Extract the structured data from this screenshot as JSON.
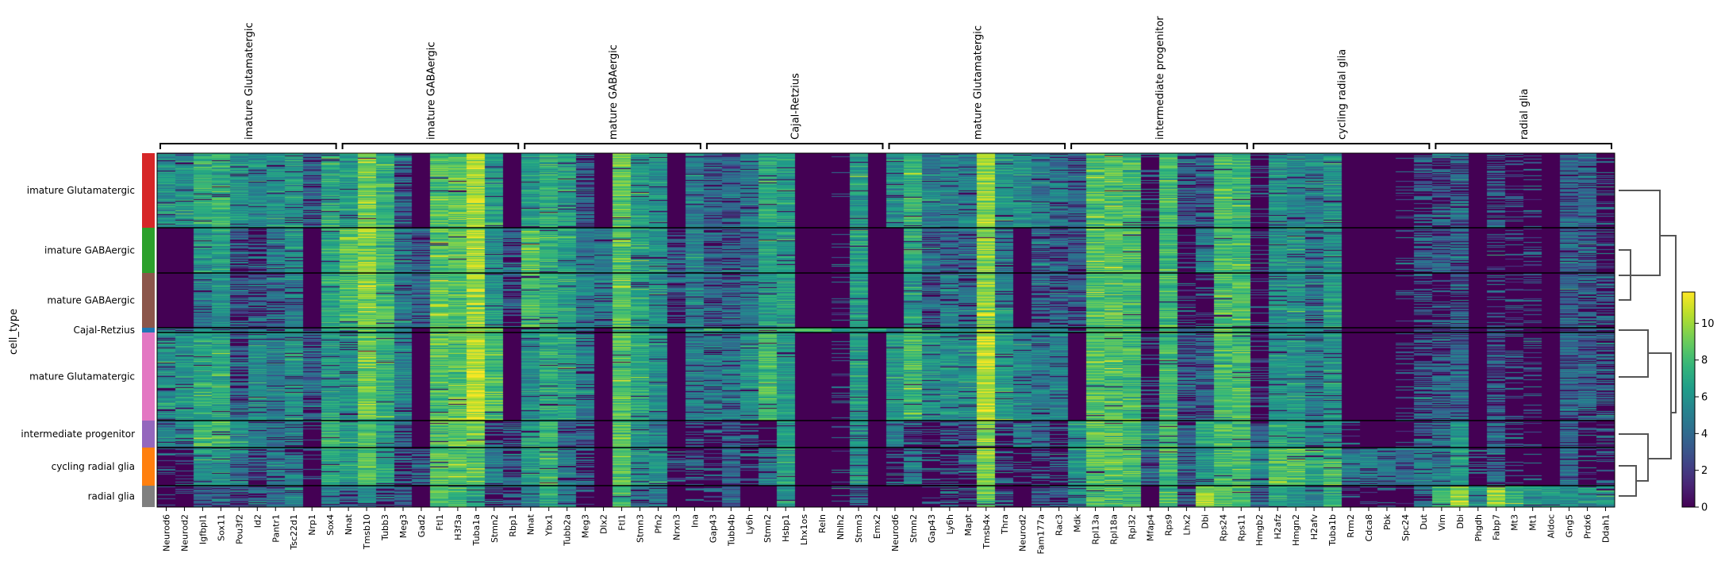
{
  "chart_data": {
    "type": "heatmap",
    "colormap": "viridis",
    "ylabel": "cell_type",
    "colorbar": {
      "range": [
        0,
        11.7
      ],
      "ticks": [
        "0",
        "2",
        "4",
        "6",
        "8",
        "10"
      ]
    },
    "cell_types": [
      "imature Glutamatergic",
      "imature GABAergic",
      "mature GABAergic",
      "Cajal-Retzius",
      "mature Glutamatergic",
      "intermediate progenitor",
      "cycling radial glia",
      "radial glia"
    ],
    "cell_type_colors": [
      "#d62728",
      "#2ca02c",
      "#8c564b",
      "#1f77b4",
      "#e377c2",
      "#9467bd",
      "#ff7f0e",
      "#7f7f7f"
    ],
    "var_groups": [
      {
        "label": "imature Glutamatergic",
        "genes": [
          "Neurod6",
          "Neurod2",
          "Igfbpl1",
          "Sox11",
          "Pou3f2",
          "Id2",
          "Pantr1",
          "Tsc22d1",
          "Nrp1",
          "Sox4"
        ]
      },
      {
        "label": "imature GABAergic",
        "genes": [
          "Nnat",
          "Tmsb10",
          "Tubb3",
          "Meg3",
          "Gad2",
          "Ftl1",
          "H3f3a",
          "Tuba1a",
          "Stmn2",
          "Rbp1"
        ]
      },
      {
        "label": "mature GABAergic",
        "genes": [
          "Nnat",
          "Ybx1",
          "Tubb2a",
          "Meg3",
          "Dlx2",
          "Ftl1",
          "Stmn3",
          "Pfn2",
          "Nrxn3",
          "Ina"
        ]
      },
      {
        "label": "Cajal-Retzius",
        "genes": [
          "Gap43",
          "Tubb4b",
          "Ly6h",
          "Stmn2",
          "Hsbp1",
          "Lhx1os",
          "Reln",
          "Nhlh2",
          "Stmn3",
          "Emx2"
        ]
      },
      {
        "label": "mature Glutamatergic",
        "genes": [
          "Neurod6",
          "Stmn2",
          "Gap43",
          "Ly6h",
          "Mapt",
          "Tmsb4x",
          "Thra",
          "Neurod2",
          "Fam177a",
          "Rac3"
        ]
      },
      {
        "label": "intermediate progenitor",
        "genes": [
          "Mdk",
          "Rpl13a",
          "Rpl18a",
          "Rpl32",
          "Mfap4",
          "Rps9",
          "Lhx2",
          "Dbi",
          "Rps24",
          "Rps11"
        ]
      },
      {
        "label": "cycling radial glia",
        "genes": [
          "Hmgb2",
          "H2afz",
          "Hmgn2",
          "H2afv",
          "Tuba1b",
          "Rrm2",
          "Cdca8",
          "Pbk",
          "Spc24",
          "Dut"
        ]
      },
      {
        "label": "radial glia",
        "genes": [
          "Vim",
          "Dbi",
          "Phgdh",
          "Fabp7",
          "Mt3",
          "Mt1",
          "Aldoc",
          "Gng5",
          "Prdx6",
          "Ddah1"
        ]
      }
    ],
    "approx_mean_expression": [
      [
        6,
        6,
        7.5,
        7.5,
        6,
        5.5,
        6,
        6,
        3,
        7,
        6.5,
        9,
        7.5,
        3,
        0,
        8.5,
        8.5,
        10,
        6.5,
        0,
        6.5,
        7.5,
        6.5,
        3,
        0,
        8.5,
        6.5,
        6,
        0,
        5,
        4,
        4,
        5,
        7,
        6.5,
        0,
        0,
        0.2,
        6.5,
        0,
        6,
        7.5,
        5,
        5,
        5,
        10,
        6,
        6,
        5,
        5,
        4,
        8.5,
        8.5,
        8,
        0.5,
        8,
        3,
        3,
        8,
        8,
        0.5,
        6,
        5.5,
        5,
        6,
        0,
        0,
        0,
        0.3,
        2,
        2,
        3,
        0,
        2,
        0.5,
        0.5,
        0,
        4,
        4,
        0.5
      ],
      [
        0,
        0,
        6,
        6.5,
        2,
        1.5,
        5,
        6,
        0,
        7,
        8.5,
        9.5,
        8,
        5,
        4,
        8.5,
        8.5,
        10,
        6,
        3,
        8.5,
        7.5,
        6.5,
        5,
        5,
        8.5,
        6.5,
        6,
        2,
        5,
        3,
        3,
        4,
        6.5,
        6.5,
        0,
        0,
        0.2,
        6.5,
        0,
        0,
        7,
        4,
        4,
        4,
        9.5,
        5,
        0,
        3,
        3,
        3,
        8.5,
        8.5,
        8,
        0,
        8,
        0.5,
        5,
        8,
        8,
        0.5,
        6,
        6,
        5,
        6,
        0,
        0,
        0,
        0.3,
        2.5,
        3,
        4,
        0,
        0.5,
        0.5,
        0.5,
        0,
        4,
        3,
        1
      ],
      [
        0,
        0,
        5,
        6,
        2,
        3,
        3,
        5,
        0,
        7,
        8,
        9.5,
        8,
        5,
        4,
        8.5,
        8.5,
        10,
        6,
        1.5,
        8,
        7.5,
        6.5,
        5,
        5,
        8.5,
        6.5,
        6,
        2,
        5,
        3,
        3,
        5,
        6.5,
        6.5,
        0,
        0,
        0.2,
        6.5,
        0,
        0,
        6.5,
        2,
        5,
        4.5,
        9.5,
        5.5,
        0,
        3,
        3,
        3,
        8.5,
        8.5,
        8,
        0,
        8,
        0.5,
        1,
        8,
        8,
        0.5,
        6,
        6,
        5,
        6.5,
        0,
        0,
        0,
        0.3,
        1,
        1,
        2,
        0,
        0.5,
        0.5,
        0.5,
        0,
        4,
        3,
        1.5
      ],
      [
        5,
        5,
        6,
        6,
        3,
        5,
        5,
        6,
        3,
        6.5,
        6,
        9,
        7.5,
        5,
        0,
        8.5,
        8.5,
        10,
        8,
        0,
        6,
        7,
        6.5,
        5,
        0,
        8.5,
        7,
        6,
        0,
        6,
        7,
        6,
        7,
        8,
        7,
        8,
        8,
        6,
        7,
        7,
        5,
        8,
        7,
        7,
        6,
        10,
        6,
        5,
        5,
        5,
        2,
        8.5,
        8.5,
        8,
        0.5,
        8,
        2,
        3,
        8,
        8,
        0.5,
        6,
        6,
        5,
        6,
        0,
        0,
        0,
        0.3,
        2,
        2,
        3,
        0,
        1,
        0.5,
        0.5,
        0,
        4,
        4,
        1
      ],
      [
        6,
        6,
        6.5,
        7,
        3,
        6,
        5,
        6,
        4,
        6.5,
        6,
        9,
        7.5,
        5,
        0,
        8.5,
        8.5,
        10.5,
        8,
        0,
        6,
        7,
        6.5,
        5,
        0,
        8.5,
        7,
        6,
        0,
        5,
        5,
        5,
        6,
        8,
        6.5,
        0,
        0,
        0.2,
        6.5,
        0,
        6.5,
        8,
        6,
        6,
        6,
        10.5,
        6.5,
        5.5,
        5,
        5,
        0,
        8.5,
        8.5,
        8,
        0.5,
        8,
        2,
        4,
        8,
        8,
        0.5,
        6,
        6,
        5,
        6,
        0,
        0,
        0,
        0.3,
        2,
        3,
        4,
        0,
        2,
        0.5,
        0.5,
        0,
        4,
        4,
        1.5
      ],
      [
        5,
        5,
        8,
        8,
        6,
        5,
        5,
        5,
        0.5,
        7.5,
        6.5,
        8.5,
        6.5,
        2,
        0,
        8.5,
        8.5,
        9,
        1.5,
        2,
        6.5,
        7.5,
        3,
        2,
        0,
        8.5,
        6,
        5,
        0,
        2,
        1,
        2,
        1,
        0.5,
        6.5,
        0,
        0,
        0.2,
        6,
        0,
        5,
        1,
        1,
        2,
        2,
        9.5,
        1,
        5,
        4,
        1,
        6,
        8.5,
        8.5,
        8,
        5,
        8,
        4,
        7,
        8,
        8,
        4,
        7,
        6.5,
        5.5,
        6,
        0.5,
        0,
        0,
        0.3,
        3,
        4.5,
        6,
        0,
        3,
        1.5,
        0.5,
        0,
        4,
        0.5,
        0.5
      ],
      [
        0.5,
        0.5,
        6,
        6,
        5,
        2,
        5,
        5,
        0.5,
        7,
        6.5,
        8.5,
        7,
        2,
        3,
        8.5,
        8.5,
        8.5,
        5,
        3,
        6.5,
        7.5,
        5,
        2,
        0,
        8.5,
        6,
        6,
        1,
        1,
        1,
        4,
        1,
        5,
        6.5,
        0,
        0,
        0.2,
        6,
        0,
        1,
        5,
        0.5,
        1,
        2,
        9.5,
        1,
        0.5,
        1,
        1,
        6,
        8.5,
        8.5,
        8,
        4,
        8,
        3,
        6,
        8,
        8,
        6,
        8.5,
        8,
        7,
        8,
        5,
        5,
        4.5,
        4,
        5,
        5,
        6,
        0.5,
        3,
        0.5,
        0.5,
        0,
        4,
        0.5,
        1
      ],
      [
        0.5,
        0.5,
        3,
        3,
        3,
        2,
        4,
        5,
        0,
        5,
        4,
        6,
        2,
        2,
        0,
        8.5,
        8,
        7,
        1,
        2,
        5,
        7.5,
        5,
        1,
        0,
        8,
        3,
        5,
        0,
        0.5,
        1,
        4,
        0,
        0,
        6,
        0,
        0,
        0.2,
        3,
        0,
        0,
        0,
        0.5,
        1,
        1,
        9,
        1,
        0,
        3,
        4,
        6,
        8.5,
        8.5,
        8,
        0,
        8,
        2,
        10,
        8.5,
        8,
        3,
        6.5,
        6,
        5,
        7,
        1,
        0.5,
        0.5,
        0.3,
        2,
        8,
        10,
        6,
        10,
        7,
        6,
        6,
        6,
        6,
        6
      ]
    ],
    "dendrogram": "((imature Glutamatergic,(imature GABAergic,mature GABAergic)),((Cajal-Retzius,mature Glutamatergic),(intermediate progenitor,(cycling radial glia,radial glia))))"
  }
}
